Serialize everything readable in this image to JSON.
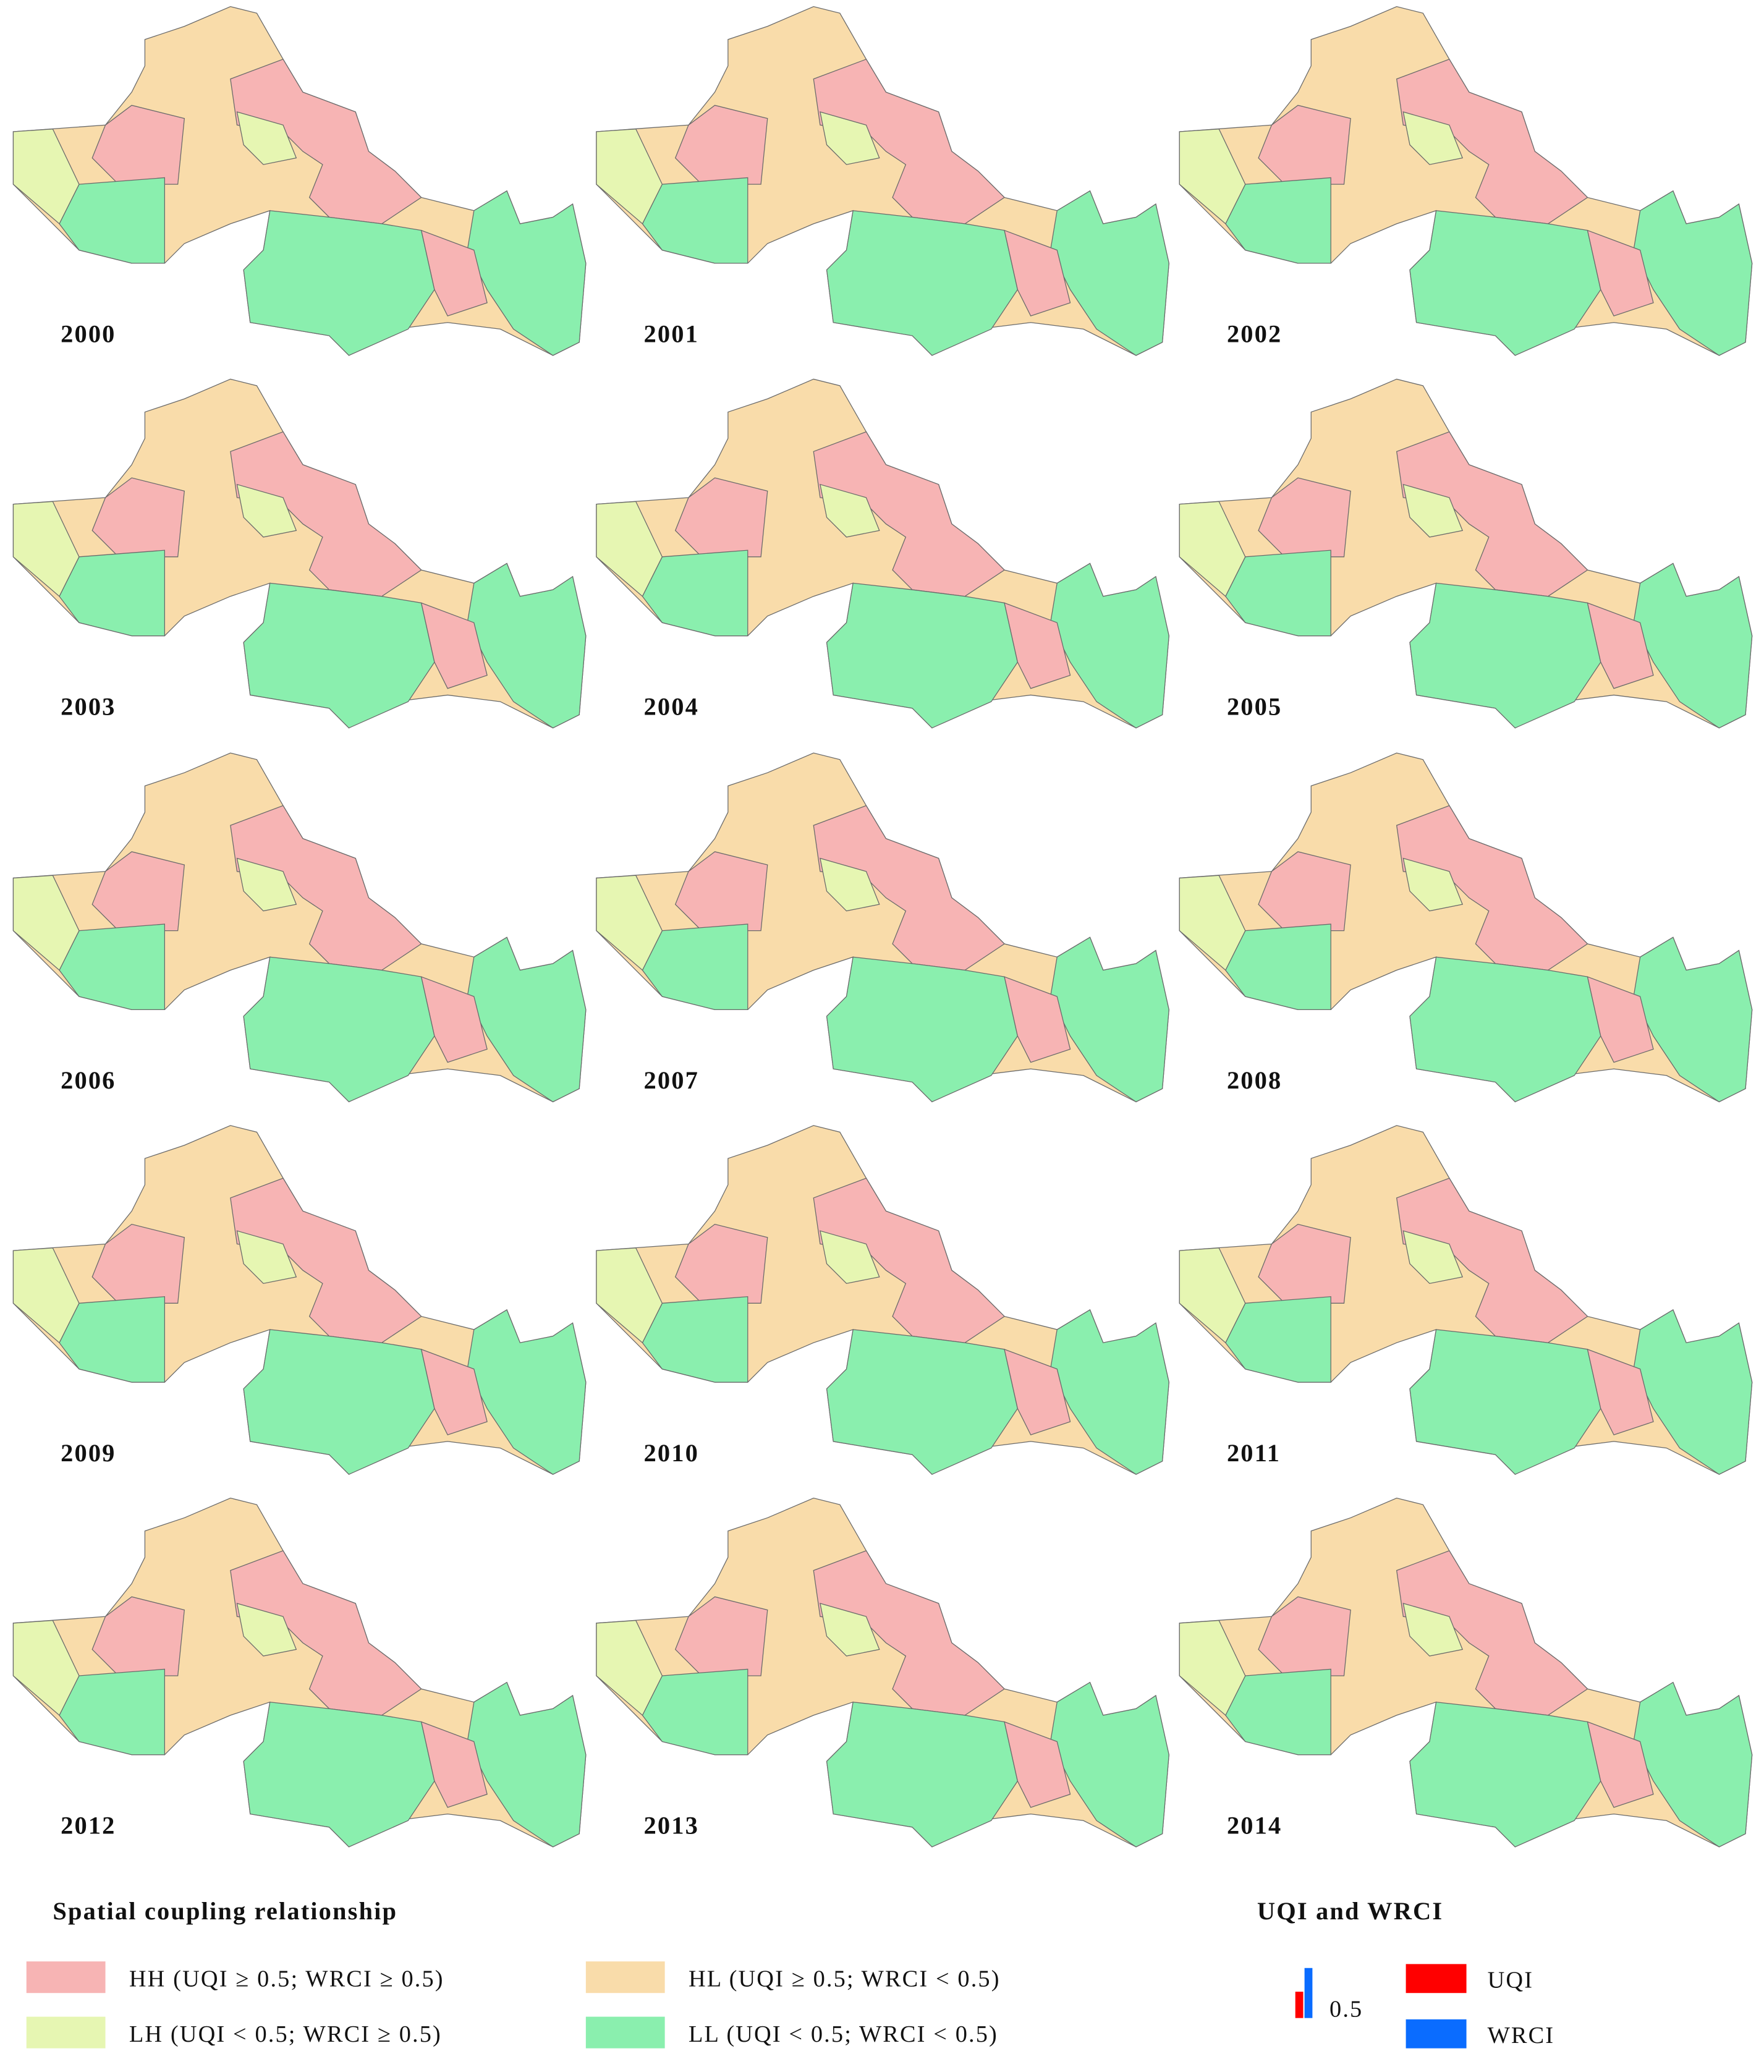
{
  "panels": [
    {
      "year": "2000"
    },
    {
      "year": "2001"
    },
    {
      "year": "2002"
    },
    {
      "year": "2003"
    },
    {
      "year": "2004"
    },
    {
      "year": "2005"
    },
    {
      "year": "2006"
    },
    {
      "year": "2007"
    },
    {
      "year": "2008"
    },
    {
      "year": "2009"
    },
    {
      "year": "2010"
    },
    {
      "year": "2011"
    },
    {
      "year": "2012"
    },
    {
      "year": "2013"
    },
    {
      "year": "2014"
    }
  ],
  "legend": {
    "title": "Spatial coupling relationship",
    "items": [
      {
        "label": "HH (UQI ≥ 0.5; WRCI ≥ 0.5)",
        "color": "#f7b4b4"
      },
      {
        "label": "HL (UQI ≥ 0.5; WRCI < 0.5)",
        "color": "#f9dcaa"
      },
      {
        "label": "LH (UQI < 0.5; WRCI ≥ 0.5)",
        "color": "#e6f6b2"
      },
      {
        "label": "LL (UQI < 0.5; WRCI < 0.5)",
        "color": "#8aefae"
      }
    ]
  },
  "bar_legend": {
    "title": "UQI and WRCI",
    "scale_label": "0.5",
    "items": [
      {
        "label": "UQI",
        "color": "#ff0000"
      },
      {
        "label": "WRCI",
        "color": "#0a6cff"
      }
    ]
  }
}
